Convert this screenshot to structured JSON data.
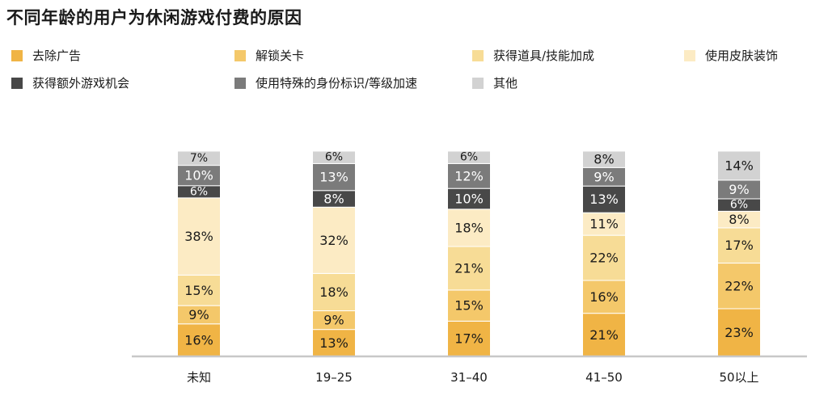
{
  "chart_data": {
    "type": "bar",
    "stacked": true,
    "title": "不同年龄的用户为休闲游戏付费的原因",
    "categories": [
      "未知",
      "19–25",
      "31–40",
      "41–50",
      "50以上"
    ],
    "series": [
      {
        "name": "去除广告",
        "color": "#f0b445",
        "values": [
          16,
          13,
          17,
          21,
          23
        ]
      },
      {
        "name": "解锁关卡",
        "color": "#f4c86a",
        "values": [
          9,
          9,
          15,
          16,
          22
        ]
      },
      {
        "name": "获得道具/技能加成",
        "color": "#f7dc96",
        "values": [
          15,
          18,
          21,
          22,
          17
        ]
      },
      {
        "name": "使用皮肤装饰",
        "color": "#fcebc4",
        "values": [
          38,
          32,
          18,
          11,
          8
        ]
      },
      {
        "name": "获得额外游戏机会",
        "color": "#484848",
        "values": [
          6,
          8,
          10,
          13,
          6
        ]
      },
      {
        "name": "使用特殊的身份标识/等级加速",
        "color": "#7b7b7b",
        "values": [
          10,
          13,
          12,
          9,
          9
        ]
      },
      {
        "name": "其他",
        "color": "#d2d2d2",
        "values": [
          7,
          6,
          6,
          8,
          14
        ]
      }
    ],
    "ylim": [
      0,
      100
    ],
    "legend_position": "top",
    "grid": false,
    "xlabel": "",
    "ylabel": ""
  }
}
